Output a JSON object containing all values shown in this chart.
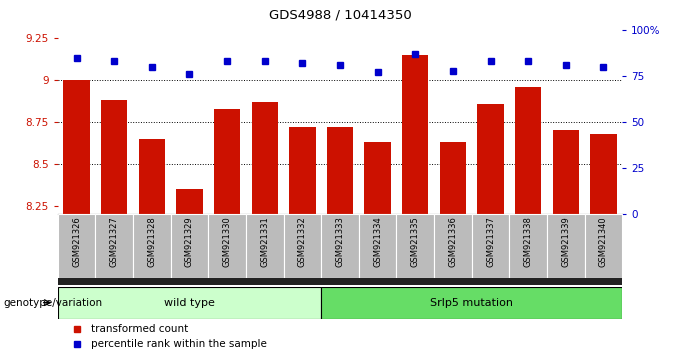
{
  "title": "GDS4988 / 10414350",
  "samples": [
    "GSM921326",
    "GSM921327",
    "GSM921328",
    "GSM921329",
    "GSM921330",
    "GSM921331",
    "GSM921332",
    "GSM921333",
    "GSM921334",
    "GSM921335",
    "GSM921336",
    "GSM921337",
    "GSM921338",
    "GSM921339",
    "GSM921340"
  ],
  "transformed_count": [
    9.0,
    8.88,
    8.65,
    8.35,
    8.83,
    8.87,
    8.72,
    8.72,
    8.63,
    9.15,
    8.63,
    8.86,
    8.96,
    8.7,
    8.68
  ],
  "percentile_rank": [
    85,
    83,
    80,
    76,
    83,
    83,
    82,
    81,
    77,
    87,
    78,
    83,
    83,
    81,
    80
  ],
  "bar_color": "#cc1100",
  "dot_color": "#0000cc",
  "ylim_left": [
    8.2,
    9.3
  ],
  "ylim_right": [
    0,
    100
  ],
  "yticks_left": [
    8.25,
    8.5,
    8.75,
    9.0,
    9.25
  ],
  "yticks_right": [
    0,
    25,
    50,
    75,
    100
  ],
  "ytick_labels_right": [
    "0",
    "25",
    "50",
    "75",
    "100%"
  ],
  "grid_lines": [
    9.0,
    8.75,
    8.5
  ],
  "wild_type_count": 7,
  "mutation_count": 8,
  "wild_type_label": "wild type",
  "mutation_label": "Srlp5 mutation",
  "genotype_label": "genotype/variation",
  "legend_red_label": "transformed count",
  "legend_blue_label": "percentile rank within the sample",
  "wild_type_color": "#ccffcc",
  "mutation_color": "#66dd66",
  "xticklabel_bg": "#bbbbbb",
  "bottom_bar_color": "#222222"
}
